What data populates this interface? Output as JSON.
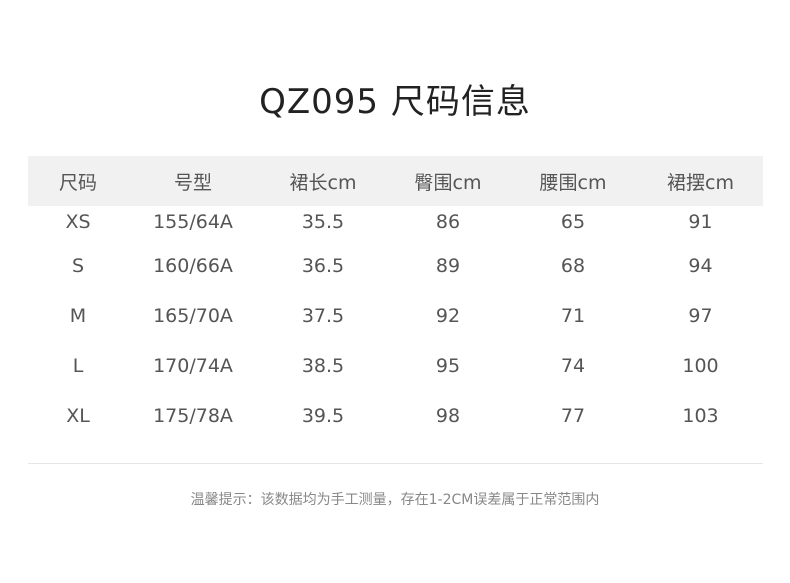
{
  "title": "QZ095 尺码信息",
  "table": {
    "headers": [
      "尺码",
      "号型",
      "裙长cm",
      "臀围cm",
      "腰围cm",
      "裙摆cm"
    ],
    "rows": [
      [
        "XS",
        "155/64A",
        "35.5",
        "86",
        "65",
        "91"
      ],
      [
        "S",
        "160/66A",
        "36.5",
        "89",
        "68",
        "94"
      ],
      [
        "M",
        "165/70A",
        "37.5",
        "92",
        "71",
        "97"
      ],
      [
        "L",
        "170/74A",
        "38.5",
        "95",
        "74",
        "100"
      ],
      [
        "XL",
        "175/78A",
        "39.5",
        "98",
        "77",
        "103"
      ]
    ]
  },
  "note": "温馨提示：该数据均为手工测量，存在1-2CM误差属于正常范围内"
}
